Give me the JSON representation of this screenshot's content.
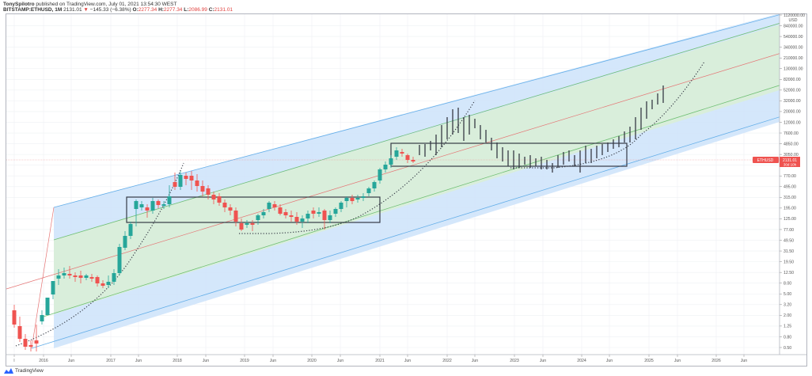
{
  "header": {
    "publisher": "TonySpilotro",
    "published_text": "published on TradingView.com, July 01, 2021 13:54:30 WEST",
    "symbol": "BITSTAMP:ETHUSD, 1M",
    "last": "2131.01",
    "change_arrow": "▼",
    "change": "−145.33 (−6.38%)",
    "o_label": "O:",
    "o": "2277.34",
    "h_label": "H:",
    "h": "2277.34",
    "l_label": "L:",
    "l": "2086.99",
    "c_label": "C:",
    "c": "2131.01"
  },
  "price_axis": {
    "currency": "USD",
    "ticks": [
      "1120000.00",
      "840000.00",
      "540000.00",
      "340000.00",
      "210000.00",
      "130000.00",
      "82000.00",
      "52000.00",
      "32000.00",
      "20000.00",
      "12000.00",
      "7600.00",
      "4850.00",
      "3050.00",
      "1250.00",
      "770.00",
      "495.00",
      "315.00",
      "195.00",
      "125.00",
      "77.00",
      "49.50",
      "31.50",
      "19.50",
      "12.50",
      "8.00",
      "5.00",
      "3.20",
      "2.00",
      "1.25",
      "0.80",
      "0.50"
    ],
    "price_label": {
      "symbol": "ETHUSD",
      "price": "2131.01",
      "countdown": "30d 10h"
    }
  },
  "time_axis": {
    "ticks": [
      "l",
      "2016",
      "Jun",
      "2017",
      "Jun",
      "2018",
      "Jun",
      "2019",
      "Jun",
      "2020",
      "Jun",
      "2021",
      "Jun",
      "2022",
      "Jun",
      "2023",
      "Jun",
      "2024",
      "Jun",
      "2025",
      "Jun",
      "2026",
      "Jun"
    ]
  },
  "footer": {
    "brand": "TradingView"
  },
  "colors": {
    "up": "#26a69a",
    "down": "#ef5350",
    "outer_channel_fill": "#cfe4fb",
    "inner_channel_fill": "#d9eedb",
    "outer_line": "#64aee8",
    "inner_line": "#6fbf73",
    "mid_line": "#e57373",
    "box": "#363a45",
    "projection": "#4a4f5a"
  },
  "chart_data": {
    "type": "candlestick",
    "title": "BITSTAMP:ETHUSD, 1M",
    "yscale": "log",
    "ylabel": "USD",
    "ylim": [
      0.5,
      1120000
    ],
    "xlim": [
      "2015-08",
      "2026-09"
    ],
    "grid": true,
    "annotations": [
      "Logarithmic regression channel (outer blue band, inner green band, red median line)",
      "Accumulation box 2017–2020 (~90 to ~600 USD)",
      "Accumulation box 2021–2024 (~1250 to ~4000 USD)",
      "Dotted parabolic curves marking each cycle's advance",
      "Projected path 2024–2025 shown as black bars extending to ~40000"
    ],
    "series": [
      {
        "name": "ETHUSD monthly (approx closes)",
        "x": [
          "2015-08",
          "2015-10",
          "2016-01",
          "2016-03",
          "2016-06",
          "2016-09",
          "2016-12",
          "2017-03",
          "2017-05",
          "2017-06",
          "2017-09",
          "2017-12",
          "2018-01",
          "2018-03",
          "2018-06",
          "2018-09",
          "2018-12",
          "2019-03",
          "2019-06",
          "2019-09",
          "2019-12",
          "2020-03",
          "2020-06",
          "2020-09",
          "2020-12",
          "2021-01",
          "2021-02",
          "2021-04",
          "2021-05",
          "2021-06"
        ],
        "values": [
          1.2,
          0.6,
          0.95,
          11,
          12,
          13,
          8,
          50,
          230,
          280,
          300,
          750,
          1100,
          400,
          450,
          230,
          130,
          140,
          290,
          180,
          130,
          135,
          230,
          360,
          740,
          1300,
          1400,
          2800,
          2700,
          2131
        ]
      }
    ],
    "channel": {
      "outer_upper_start": 260,
      "outer_upper_end": 1120000,
      "median_start": 12.5,
      "median_end": 230000,
      "outer_lower_start": 0.5,
      "outer_lower_end": 12000
    }
  }
}
